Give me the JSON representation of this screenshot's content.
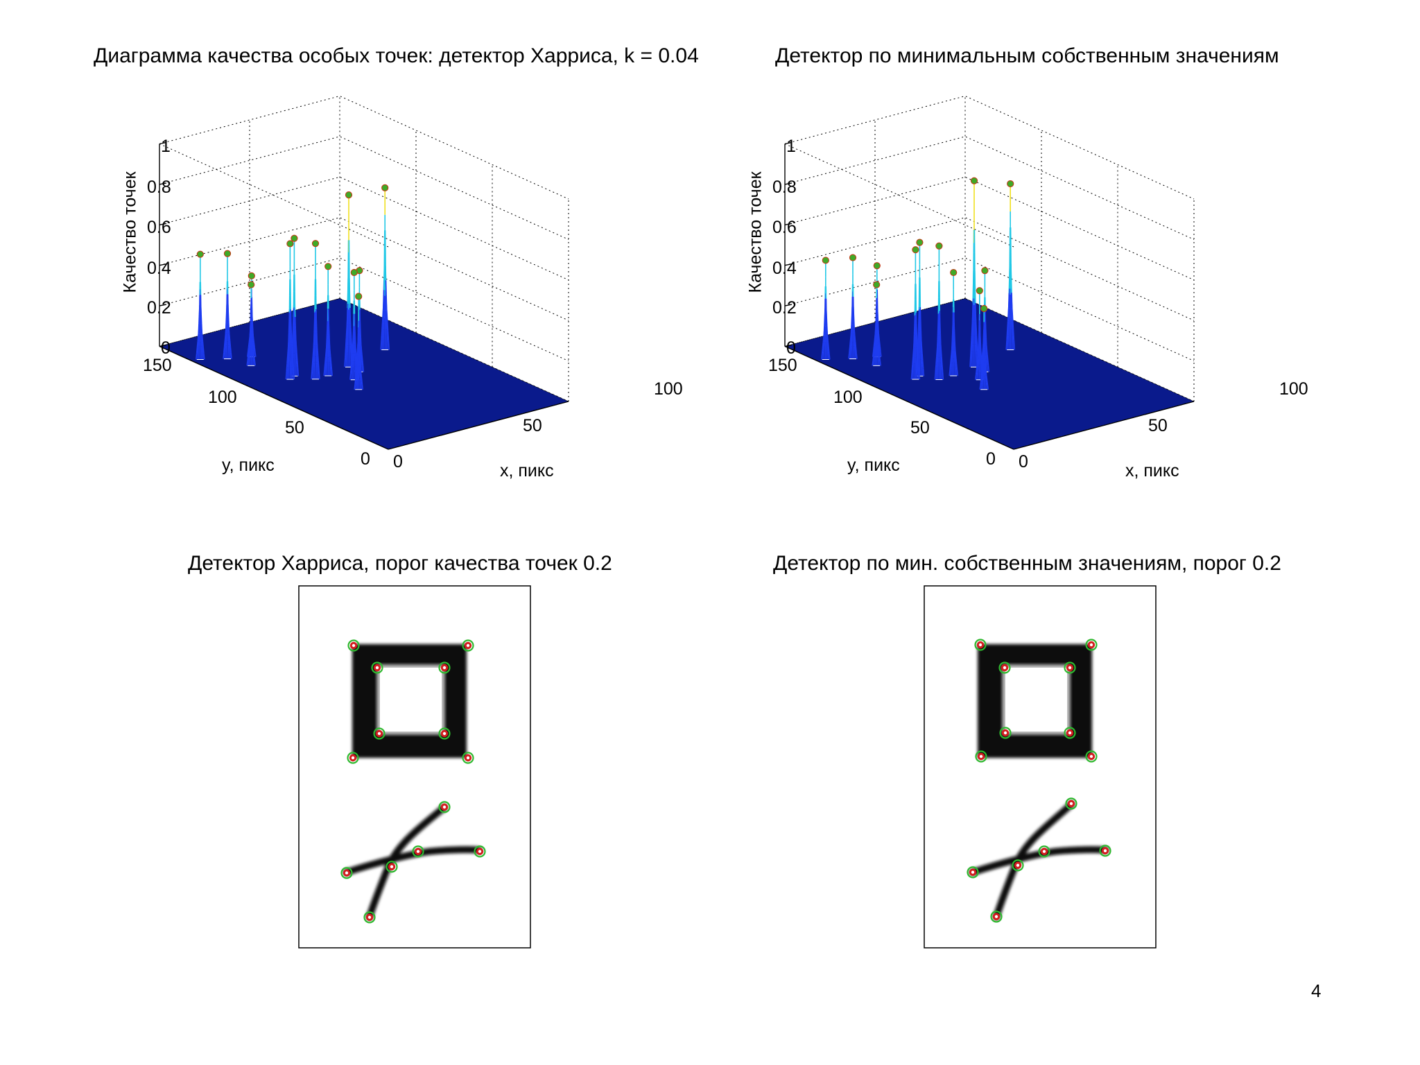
{
  "page_number": "4",
  "chart_data": [
    {
      "type": "surface3d",
      "title": "Диаграмма качества особых точек: детектор Харриса, k = 0.04",
      "xlabel": "x, пикс",
      "ylabel": "y, пикс",
      "zlabel": "Качество точек",
      "x_ticks": [
        "0",
        "50",
        "100"
      ],
      "y_ticks": [
        "0",
        "50",
        "100",
        "150"
      ],
      "z_ticks": [
        "0",
        "0.2",
        "0.4",
        "0.6",
        "0.8",
        "1"
      ],
      "xlim": [
        0,
        100
      ],
      "ylim": [
        0,
        150
      ],
      "zlim": [
        0,
        1
      ],
      "grid": true,
      "peaks": [
        {
          "x": 4,
          "y": 128,
          "z": 0.52
        },
        {
          "x": 14,
          "y": 122,
          "z": 0.52
        },
        {
          "x": 17,
          "y": 110,
          "z": 0.4
        },
        {
          "x": 24,
          "y": 118,
          "z": 0.4
        },
        {
          "x": 20,
          "y": 88,
          "z": 0.67
        },
        {
          "x": 24,
          "y": 90,
          "z": 0.68
        },
        {
          "x": 29,
          "y": 82,
          "z": 0.67
        },
        {
          "x": 36,
          "y": 82,
          "z": 0.54
        },
        {
          "x": 36,
          "y": 62,
          "z": 0.46
        },
        {
          "x": 42,
          "y": 72,
          "z": 0.53
        },
        {
          "x": 50,
          "y": 78,
          "z": 0.5
        },
        {
          "x": 50,
          "y": 85,
          "z": 0.85
        },
        {
          "x": 76,
          "y": 92,
          "z": 0.8
        }
      ]
    },
    {
      "type": "surface3d",
      "title": "Детектор по минимальным собственным значениям",
      "xlabel": "x, пикс",
      "ylabel": "y, пикс",
      "zlabel": "Качество точек",
      "x_ticks": [
        "0",
        "50",
        "100"
      ],
      "y_ticks": [
        "0",
        "50",
        "100",
        "150"
      ],
      "z_ticks": [
        "0",
        "0.2",
        "0.4",
        "0.6",
        "0.8",
        "1"
      ],
      "xlim": [
        0,
        100
      ],
      "ylim": [
        0,
        150
      ],
      "zlim": [
        0,
        1
      ],
      "grid": true,
      "peaks": [
        {
          "x": 4,
          "y": 128,
          "z": 0.49
        },
        {
          "x": 14,
          "y": 122,
          "z": 0.5
        },
        {
          "x": 17,
          "y": 110,
          "z": 0.4
        },
        {
          "x": 24,
          "y": 118,
          "z": 0.45
        },
        {
          "x": 20,
          "y": 88,
          "z": 0.64
        },
        {
          "x": 24,
          "y": 90,
          "z": 0.66
        },
        {
          "x": 28,
          "y": 82,
          "z": 0.66
        },
        {
          "x": 36,
          "y": 82,
          "z": 0.51
        },
        {
          "x": 36,
          "y": 62,
          "z": 0.4
        },
        {
          "x": 42,
          "y": 72,
          "z": 0.44
        },
        {
          "x": 50,
          "y": 78,
          "z": 0.5
        },
        {
          "x": 50,
          "y": 85,
          "z": 0.92
        },
        {
          "x": 76,
          "y": 92,
          "z": 0.82
        }
      ]
    },
    {
      "type": "image_with_points",
      "title": "Детектор Харриса, порог качества точек 0.2",
      "threshold": 0.2
    },
    {
      "type": "image_with_points",
      "title": "Детектор по мин. собственным значениям, порог 0.2",
      "threshold": 0.2
    }
  ],
  "colors": {
    "surface_floor": "#0a1a8c",
    "spike_low": "#1e3cf0",
    "spike_mid": "#21c8e6",
    "spike_high": "#f0e020",
    "spike_top": "#c81e1e",
    "peak_marker": "#3faa28",
    "peak_marker_outline": "#c83214",
    "circle_outer": "#2fb82f",
    "circle_inner": "#d21e1e"
  }
}
